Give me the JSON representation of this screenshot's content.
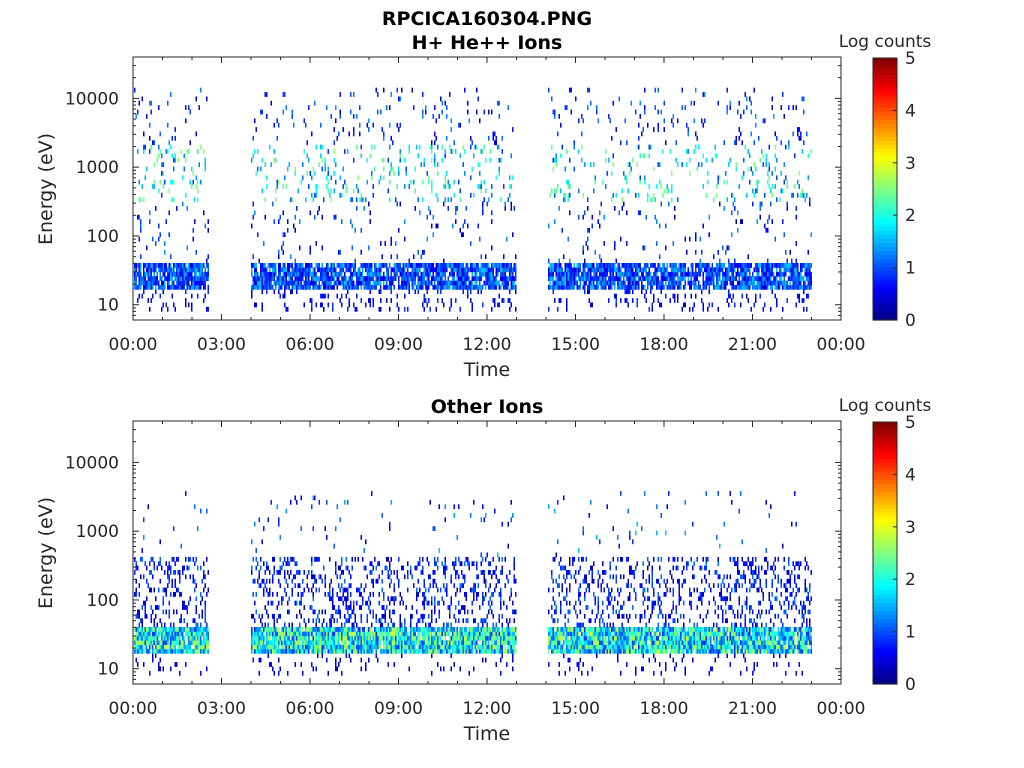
{
  "figure_title": "RPCICA160304.PNG",
  "chart_data": [
    {
      "type": "heatmap",
      "title": "H+ He++ Ions",
      "xlabel": "Time",
      "ylabel": "Energy (eV)",
      "x_ticks": [
        "00:00",
        "03:00",
        "06:00",
        "09:00",
        "12:00",
        "15:00",
        "18:00",
        "21:00",
        "00:00"
      ],
      "x_range_hours": [
        0,
        24
      ],
      "y_ticks": [
        "10",
        "100",
        "1000",
        "10000"
      ],
      "y_scale": "log",
      "y_range": [
        6,
        40000
      ],
      "colorbar": {
        "label": "Log counts",
        "range": [
          0,
          5
        ],
        "ticks": [
          "0",
          "1",
          "2",
          "3",
          "4",
          "5"
        ],
        "colormap": "jet"
      },
      "data_gaps_hours": [
        [
          2.55,
          4.0
        ],
        [
          12.95,
          14.05
        ]
      ],
      "data_end_hours": 23.0,
      "bands": [
        {
          "e_low": 17,
          "e_high": 40,
          "density": 0.85,
          "level_min": 0.4,
          "level_max": 1.6
        },
        {
          "e_low": 8,
          "e_high": 17,
          "density": 0.12,
          "level_min": 0.3,
          "level_max": 0.9
        },
        {
          "e_low": 40,
          "e_high": 15000,
          "density": 0.05,
          "level_min": 0.2,
          "level_max": 1.4
        },
        {
          "e_low": 300,
          "e_high": 2000,
          "density": 0.1,
          "level_min": 0.8,
          "level_max": 2.6
        }
      ]
    },
    {
      "type": "heatmap",
      "title": "Other Ions",
      "xlabel": "Time",
      "ylabel": "Energy (eV)",
      "x_ticks": [
        "00:00",
        "03:00",
        "06:00",
        "09:00",
        "12:00",
        "15:00",
        "18:00",
        "21:00",
        "00:00"
      ],
      "x_range_hours": [
        0,
        24
      ],
      "y_ticks": [
        "10",
        "100",
        "1000",
        "10000"
      ],
      "y_scale": "log",
      "y_range": [
        6,
        40000
      ],
      "colorbar": {
        "label": "Log counts",
        "range": [
          0,
          5
        ],
        "ticks": [
          "0",
          "1",
          "2",
          "3",
          "4",
          "5"
        ],
        "colormap": "jet"
      },
      "data_gaps_hours": [
        [
          2.55,
          4.0
        ],
        [
          12.95,
          14.05
        ]
      ],
      "data_end_hours": 23.0,
      "bands": [
        {
          "e_low": 16,
          "e_high": 42,
          "density": 0.95,
          "level_min": 0.8,
          "level_max": 2.9
        },
        {
          "e_low": 42,
          "e_high": 400,
          "density": 0.22,
          "level_min": 0.2,
          "level_max": 1.2
        },
        {
          "e_low": 400,
          "e_high": 4000,
          "density": 0.02,
          "level_min": 0.3,
          "level_max": 1.6
        },
        {
          "e_low": 8,
          "e_high": 16,
          "density": 0.08,
          "level_min": 0.2,
          "level_max": 0.7
        }
      ]
    }
  ]
}
